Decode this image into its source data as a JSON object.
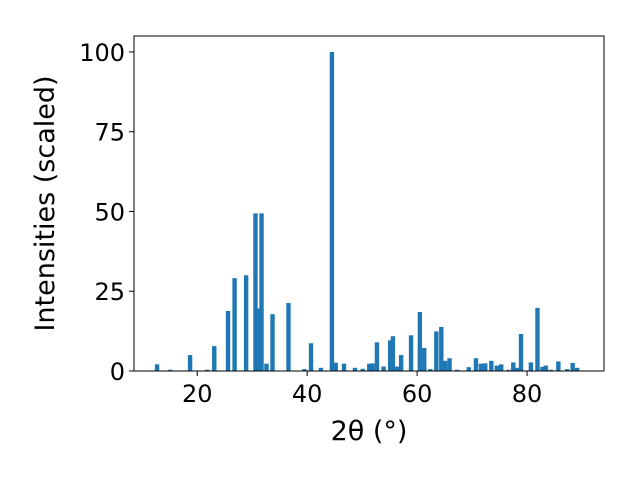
{
  "chart_data": {
    "type": "bar",
    "xlabel": "2θ (°)",
    "ylabel": "Intensities (scaled)",
    "xlim": [
      8.5,
      94
    ],
    "ylim": [
      0,
      105
    ],
    "xticks": [
      20,
      40,
      60,
      80
    ],
    "yticks": [
      0,
      25,
      50,
      75,
      100
    ],
    "bar_color": "#1f77b4",
    "bar_width": 0.8,
    "x": [
      12.7,
      15.1,
      18.7,
      21.8,
      23.1,
      25.6,
      26.8,
      28.9,
      30.6,
      31.2,
      31.7,
      32.6,
      33.7,
      36.6,
      39.5,
      40.7,
      42.5,
      44.5,
      45.2,
      46.7,
      48.7,
      50.1,
      51.3,
      51.9,
      52.7,
      53.9,
      55.1,
      55.6,
      56.4,
      57.1,
      58.9,
      60.5,
      61.3,
      62.4,
      63.5,
      64.4,
      65.1,
      65.9,
      67.3,
      69.4,
      70.7,
      71.6,
      72.4,
      73.5,
      74.5,
      75.3,
      76.6,
      77.5,
      78.2,
      78.9,
      80.7,
      81.9,
      82.8,
      83.4,
      84.3,
      85.7,
      87.3,
      88.3,
      89.1
    ],
    "values": [
      2.1,
      0.4,
      5.0,
      0.4,
      7.8,
      18.8,
      29.1,
      30.0,
      49.4,
      19.6,
      49.4,
      2.3,
      17.8,
      21.3,
      0.6,
      8.7,
      1.0,
      100,
      2.6,
      2.3,
      1.0,
      0.7,
      2.3,
      2.4,
      9.0,
      1.4,
      9.6,
      10.9,
      1.4,
      5.0,
      11.2,
      18.5,
      7.2,
      0.6,
      12.4,
      13.8,
      3.2,
      4.0,
      0.4,
      1.2,
      4.0,
      2.3,
      2.4,
      3.2,
      1.7,
      2.1,
      0.4,
      2.7,
      1.0,
      11.6,
      2.7,
      19.8,
      1.3,
      1.7,
      0.4,
      3.0,
      0.6,
      2.5,
      1.0
    ]
  }
}
